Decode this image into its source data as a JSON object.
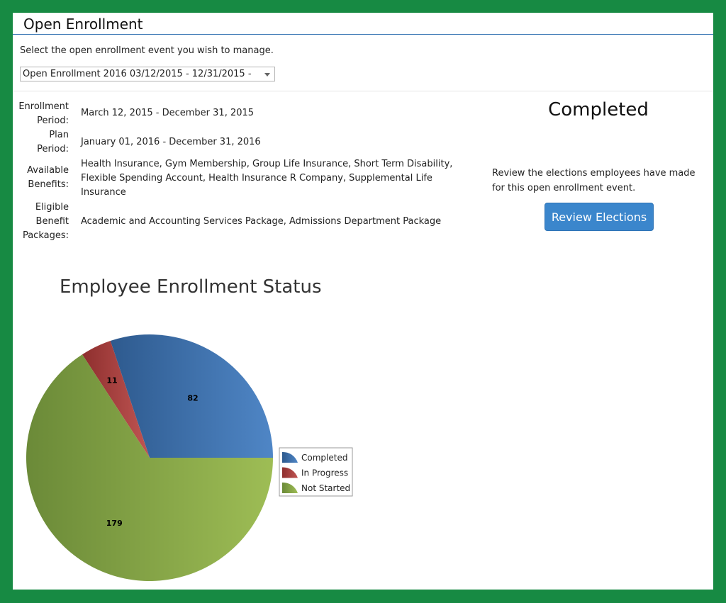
{
  "header": {
    "title": "Open Enrollment"
  },
  "selector": {
    "prompt": "Select the open enrollment event you wish to manage.",
    "selected": "Open Enrollment 2016 03/12/2015 - 12/31/2015  -"
  },
  "details": {
    "enrollment_period": {
      "label": [
        "Enrollment",
        "Period:"
      ],
      "value": "March 12, 2015 - December 31, 2015"
    },
    "plan_period": {
      "label": [
        "Plan",
        "Period:"
      ],
      "value": "January 01, 2016 - December 31, 2016"
    },
    "available_benefits": {
      "label": [
        "Available",
        "Benefits:"
      ],
      "value": "Health Insurance, Gym Membership, Group Life Insurance, Short Term Disability, Flexible Spending Account, Health Insurance R Company, Supplemental Life Insurance"
    },
    "eligible_packages": {
      "label": [
        "Eligible",
        "Benefit",
        "Packages:"
      ],
      "value": "Academic and Accounting Services Package, Admissions Department Package"
    }
  },
  "status": {
    "heading": "Completed",
    "review_text": "Review the elections employees have made for this open enrollment event.",
    "review_button": "Review Elections"
  },
  "chart_data": {
    "type": "pie",
    "title": "Employee Enrollment Status",
    "categories": [
      "Completed",
      "In Progress",
      "Not Started"
    ],
    "values": [
      82,
      11,
      179
    ],
    "colors": [
      "#4a7cb8",
      "#b84a48",
      "#8fae4c"
    ],
    "legend_position": "right"
  }
}
